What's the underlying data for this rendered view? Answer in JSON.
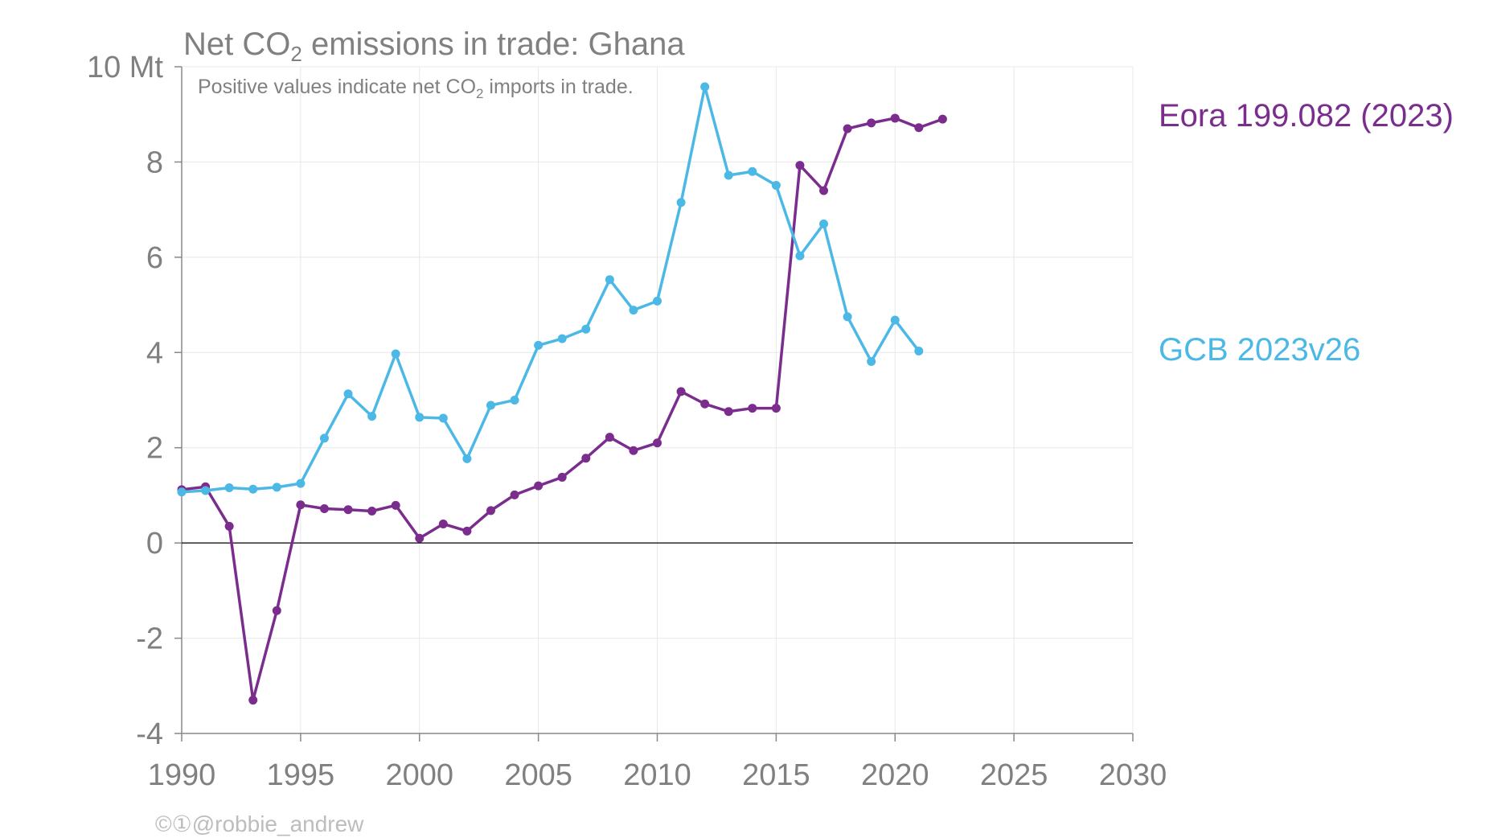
{
  "chart_data": {
    "type": "line",
    "title_prefix": "Net CO",
    "title_sub": "2",
    "title_suffix": " emissions in trade: Ghana",
    "subtitle_prefix": "Positive values indicate net CO",
    "subtitle_sub": "2",
    "subtitle_suffix": " imports in trade.",
    "x_ticks": [
      "1990",
      "1995",
      "2000",
      "2005",
      "2010",
      "2015",
      "2020",
      "2025",
      "2030"
    ],
    "y_ticks": [
      "10 Mt",
      "8",
      "6",
      "4",
      "2",
      "0",
      "-2",
      "-4"
    ],
    "xlim": [
      1990,
      2030
    ],
    "ylim": [
      -4,
      10
    ],
    "grid": true,
    "series": [
      {
        "name": "Eora 199.082 (2023)",
        "color": "#7b2d8e",
        "x": [
          1990,
          1991,
          1992,
          1993,
          1994,
          1995,
          1996,
          1997,
          1998,
          1999,
          2000,
          2001,
          2002,
          2003,
          2004,
          2005,
          2006,
          2007,
          2008,
          2009,
          2010,
          2011,
          2012,
          2013,
          2014,
          2015,
          2016,
          2017,
          2018,
          2019,
          2020,
          2021,
          2022
        ],
        "values": [
          1.12,
          1.18,
          0.35,
          -3.3,
          -1.42,
          0.8,
          0.72,
          0.7,
          0.67,
          0.79,
          0.1,
          0.4,
          0.25,
          0.68,
          1.01,
          1.2,
          1.38,
          1.78,
          2.22,
          1.94,
          2.1,
          3.18,
          2.92,
          2.76,
          2.83,
          2.83,
          7.93,
          7.4,
          8.7,
          8.82,
          8.92,
          8.72,
          8.9
        ]
      },
      {
        "name": "GCB 2023v26",
        "color": "#4cb8e6",
        "x": [
          1990,
          1991,
          1992,
          1993,
          1994,
          1995,
          1996,
          1997,
          1998,
          1999,
          2000,
          2001,
          2002,
          2003,
          2004,
          2005,
          2006,
          2007,
          2008,
          2009,
          2010,
          2011,
          2012,
          2013,
          2014,
          2015,
          2016,
          2017,
          2018,
          2019,
          2020,
          2021
        ],
        "values": [
          1.07,
          1.1,
          1.16,
          1.13,
          1.17,
          1.25,
          2.2,
          3.13,
          2.66,
          3.97,
          2.64,
          2.62,
          1.77,
          2.89,
          3.0,
          4.15,
          4.29,
          4.49,
          5.53,
          4.89,
          5.08,
          7.15,
          9.58,
          7.72,
          7.8,
          7.51,
          6.03,
          6.7,
          4.75,
          3.81,
          4.68,
          4.03
        ]
      }
    ]
  },
  "credit": "©①@robbie_andrew"
}
